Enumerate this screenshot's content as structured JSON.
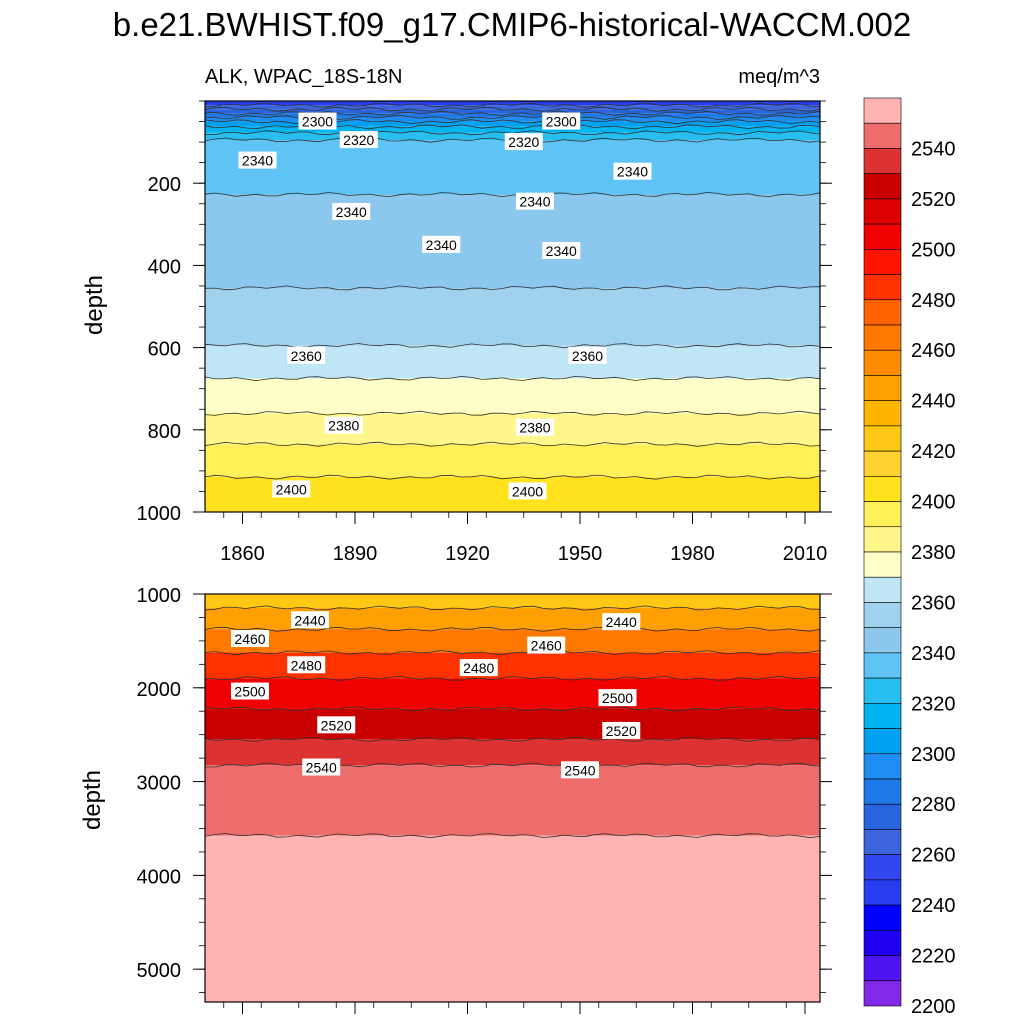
{
  "title": "b.e21.BWHIST.f09_g17.CMIP6-historical-WACCM.002",
  "variable_label": "ALK, WPAC_18S-18N",
  "units": "meq/m^3",
  "colorbar": {
    "labels": [
      "2540",
      "2520",
      "2500",
      "2480",
      "2460",
      "2440",
      "2420",
      "2400",
      "2380",
      "2360",
      "2340",
      "2320",
      "2300",
      "2280",
      "2260",
      "2240",
      "2220",
      "2200"
    ],
    "colors": [
      "#ffb3b3",
      "#ed6d6d",
      "#dc3232",
      "#c80000",
      "#dc0000",
      "#f00000",
      "#ff1400",
      "#ff3200",
      "#ff6400",
      "#ff7800",
      "#ff8c00",
      "#ffa000",
      "#ffb400",
      "#ffc814",
      "#ffd232",
      "#ffe11e",
      "#fff05a",
      "#fff78c",
      "#ffffc8",
      "#bee6f5",
      "#a0d2f0",
      "#8cc8ee",
      "#5fc3f5",
      "#28bef0",
      "#00b4f0",
      "#00a0f0",
      "#1e8cf0",
      "#1e78e6",
      "#2864dc",
      "#3c64dc",
      "#3246f0",
      "#283cf0",
      "#0000ff",
      "#1e00f0",
      "#5014f0",
      "#8228e6"
    ]
  },
  "chart_data": [
    {
      "type": "contour",
      "panel": "upper",
      "title": "ALK, WPAC_18S-18N",
      "units": "meq/m^3",
      "xlabel": "",
      "ylabel": "depth",
      "xlim": [
        1850,
        2014
      ],
      "ylim": [
        1000,
        0
      ],
      "x_ticks": [
        1860,
        1890,
        1920,
        1950,
        1980,
        2010
      ],
      "y_ticks": [
        200,
        400,
        600,
        800,
        1000
      ],
      "bands": [
        {
          "depth": 5,
          "value": 2240
        },
        {
          "depth": 15,
          "value": 2260
        },
        {
          "depth": 25,
          "value": 2270
        },
        {
          "depth": 35,
          "value": 2280
        },
        {
          "depth": 45,
          "value": 2290
        },
        {
          "depth": 55,
          "value": 2300
        },
        {
          "depth": 70,
          "value": 2310
        },
        {
          "depth": 85,
          "value": 2320
        },
        {
          "depth": 105,
          "value": 2330
        },
        {
          "depth": 350,
          "value": 2340
        },
        {
          "depth": 560,
          "value": 2350
        },
        {
          "depth": 630,
          "value": 2360
        },
        {
          "depth": 720,
          "value": 2370
        },
        {
          "depth": 800,
          "value": 2380
        },
        {
          "depth": 870,
          "value": 2390
        },
        {
          "depth": 960,
          "value": 2400
        }
      ],
      "contour_labels": [
        {
          "x": 1880,
          "depth": 50,
          "text": "2300"
        },
        {
          "x": 1945,
          "depth": 50,
          "text": "2300"
        },
        {
          "x": 1891,
          "depth": 95,
          "text": "2320"
        },
        {
          "x": 1935,
          "depth": 100,
          "text": "2320"
        },
        {
          "x": 1864,
          "depth": 145,
          "text": "2340"
        },
        {
          "x": 1964,
          "depth": 172,
          "text": "2340"
        },
        {
          "x": 1938,
          "depth": 245,
          "text": "2340"
        },
        {
          "x": 1889,
          "depth": 270,
          "text": "2340"
        },
        {
          "x": 1913,
          "depth": 350,
          "text": "2340"
        },
        {
          "x": 1945,
          "depth": 365,
          "text": "2340"
        },
        {
          "x": 1877,
          "depth": 620,
          "text": "2360"
        },
        {
          "x": 1952,
          "depth": 620,
          "text": "2360"
        },
        {
          "x": 1887,
          "depth": 790,
          "text": "2380"
        },
        {
          "x": 1938,
          "depth": 795,
          "text": "2380"
        },
        {
          "x": 1873,
          "depth": 945,
          "text": "2400"
        },
        {
          "x": 1936,
          "depth": 950,
          "text": "2400"
        }
      ]
    },
    {
      "type": "contour",
      "panel": "lower",
      "xlabel": "",
      "ylabel": "depth",
      "xlim": [
        1850,
        2014
      ],
      "ylim": [
        5350,
        1000
      ],
      "y_ticks": [
        1000,
        2000,
        3000,
        4000,
        5000
      ],
      "bands": [
        {
          "depth": 1050,
          "value": 2420
        },
        {
          "depth": 1250,
          "value": 2440
        },
        {
          "depth": 1500,
          "value": 2460
        },
        {
          "depth": 1750,
          "value": 2480
        },
        {
          "depth": 2050,
          "value": 2500
        },
        {
          "depth": 2400,
          "value": 2520
        },
        {
          "depth": 2700,
          "value": 2530
        },
        {
          "depth": 2950,
          "value": 2540
        },
        {
          "depth": 4200,
          "value": 2550
        }
      ],
      "contour_labels": [
        {
          "x": 1878,
          "depth": 1280,
          "text": "2440"
        },
        {
          "x": 1961,
          "depth": 1300,
          "text": "2440"
        },
        {
          "x": 1862,
          "depth": 1480,
          "text": "2460"
        },
        {
          "x": 1941,
          "depth": 1550,
          "text": "2460"
        },
        {
          "x": 1877,
          "depth": 1760,
          "text": "2480"
        },
        {
          "x": 1923,
          "depth": 1790,
          "text": "2480"
        },
        {
          "x": 1862,
          "depth": 2040,
          "text": "2500"
        },
        {
          "x": 1960,
          "depth": 2110,
          "text": "2500"
        },
        {
          "x": 1885,
          "depth": 2400,
          "text": "2520"
        },
        {
          "x": 1961,
          "depth": 2460,
          "text": "2520"
        },
        {
          "x": 1881,
          "depth": 2850,
          "text": "2540"
        },
        {
          "x": 1950,
          "depth": 2880,
          "text": "2540"
        }
      ]
    }
  ]
}
